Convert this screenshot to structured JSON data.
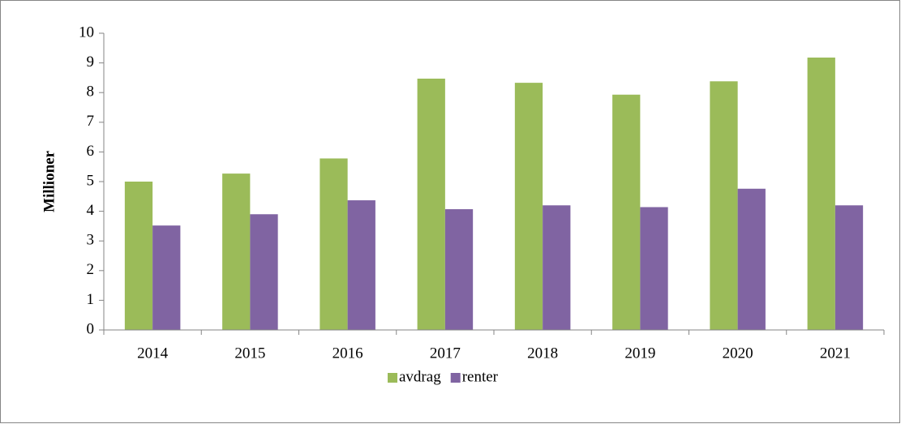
{
  "chart_data": {
    "type": "bar",
    "y_label": "Millioner",
    "categories": [
      "2014",
      "2015",
      "2016",
      "2017",
      "2018",
      "2019",
      "2020",
      "2021"
    ],
    "series": [
      {
        "name": "avdrag",
        "color": "#9bbb59",
        "values": [
          5.0,
          5.27,
          5.78,
          8.47,
          8.33,
          7.93,
          8.38,
          9.18
        ]
      },
      {
        "name": "renter",
        "color": "#8064a2",
        "values": [
          3.52,
          3.9,
          4.37,
          4.07,
          4.2,
          4.14,
          4.76,
          4.2
        ]
      }
    ],
    "ylim": [
      0,
      10
    ],
    "yticks": [
      0,
      1,
      2,
      3,
      4,
      5,
      6,
      7,
      8,
      9,
      10
    ],
    "grid": false,
    "legend": "bottom"
  }
}
